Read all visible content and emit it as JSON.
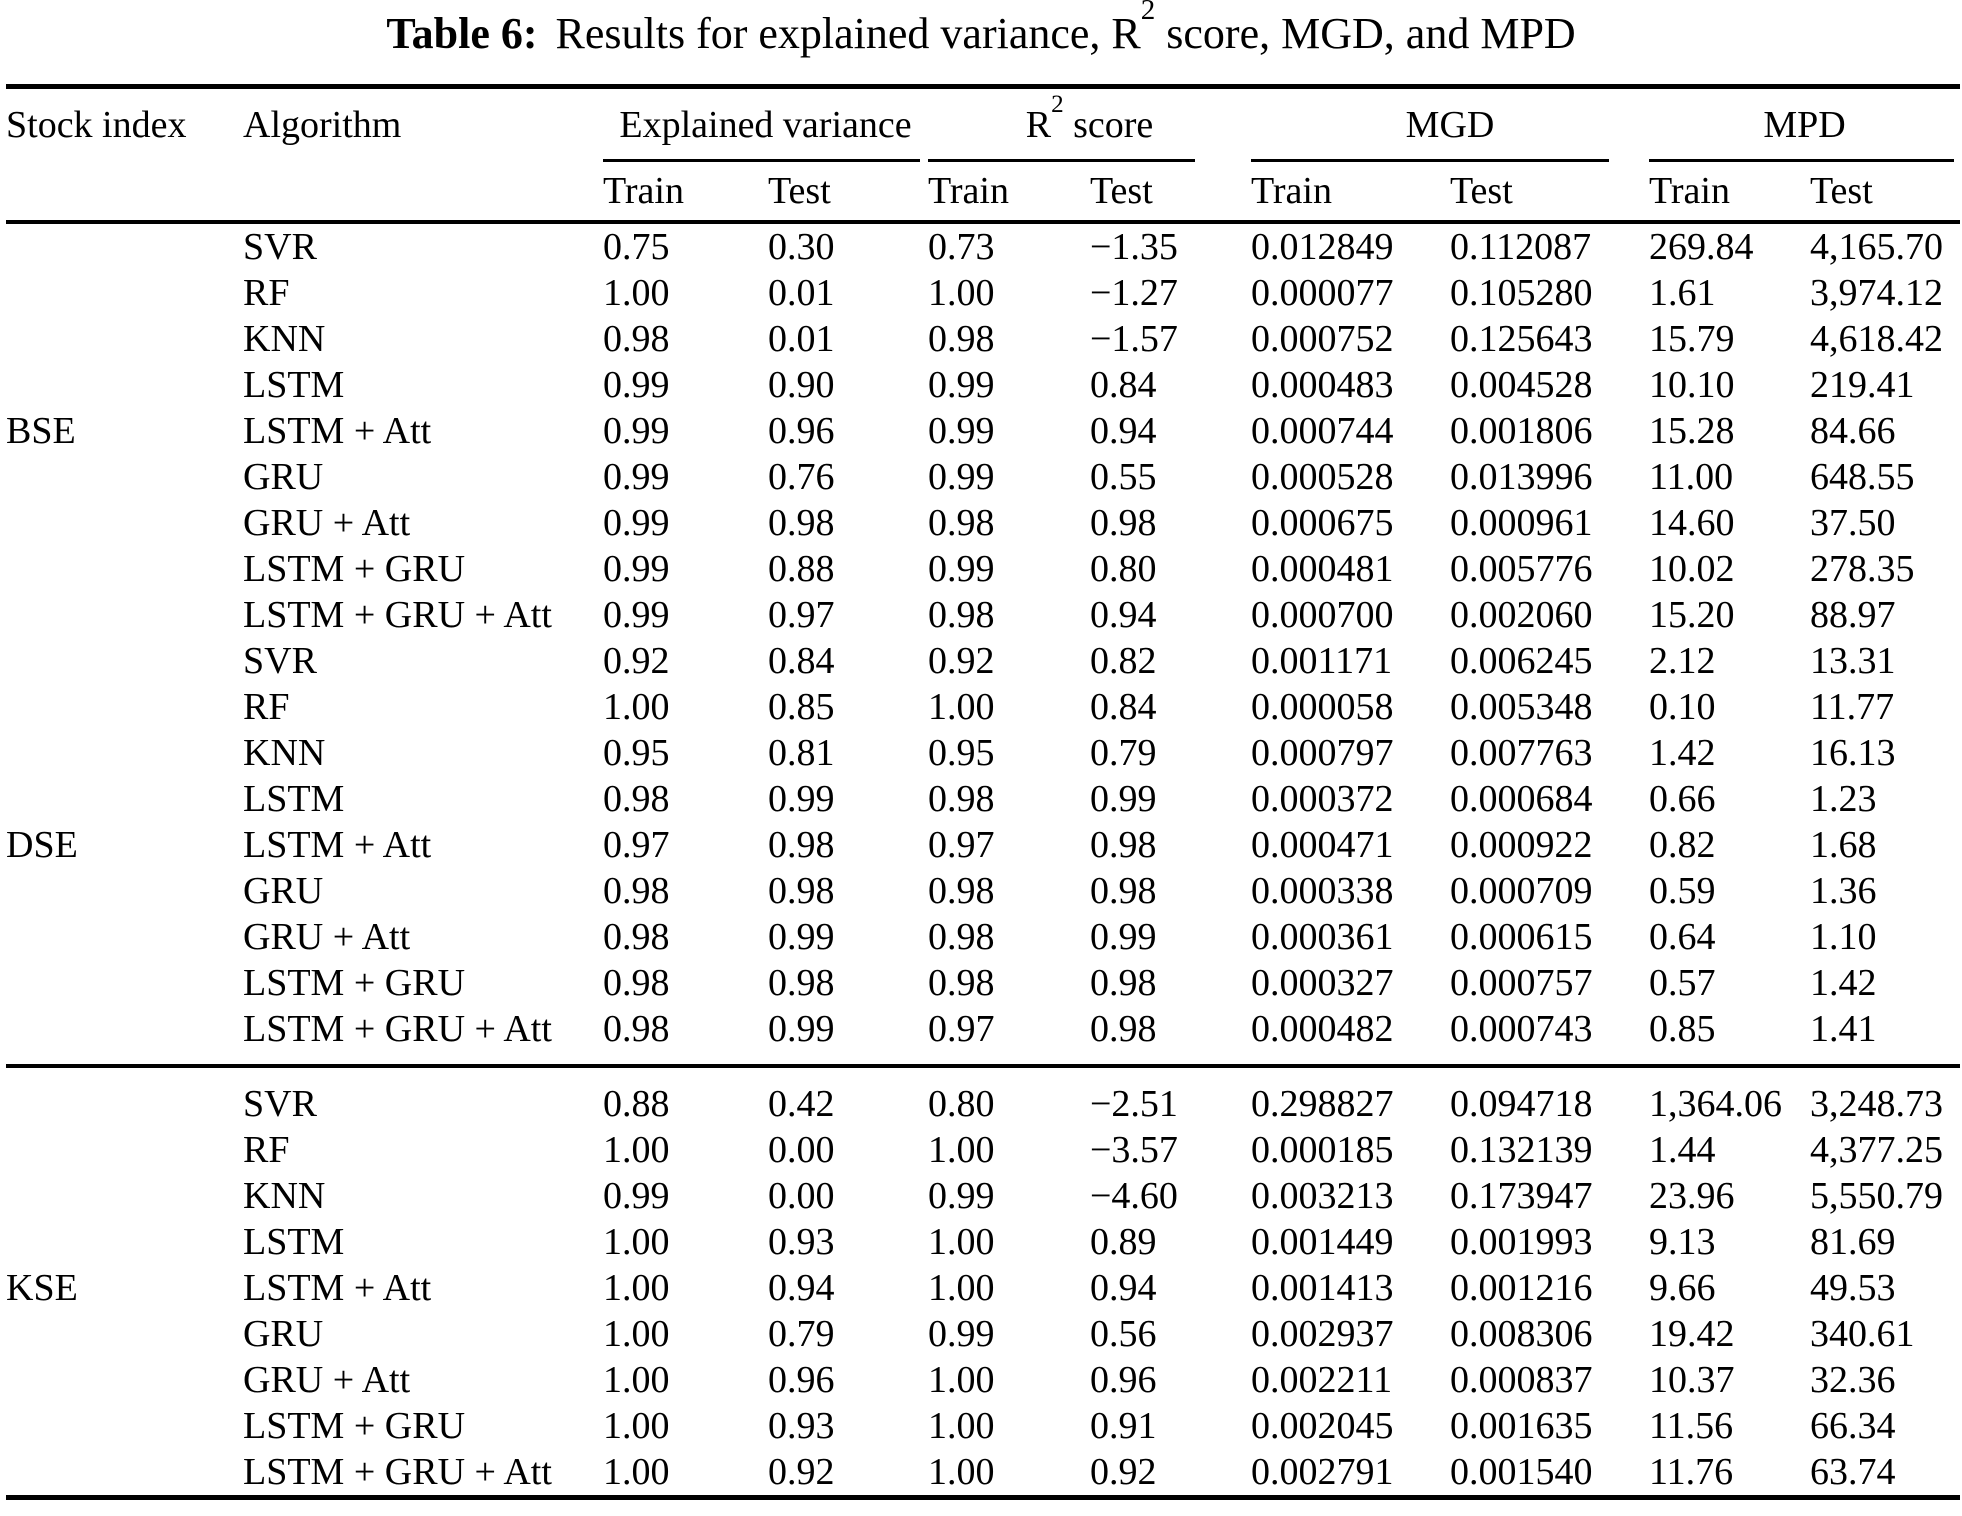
{
  "caption": {
    "label": "Table 6:",
    "text_prefix": "Results for explained variance, R",
    "text_sup": "2",
    "text_suffix": " score, MGD, and MPD"
  },
  "header": {
    "stock_index": "Stock index",
    "algorithm": "Algorithm",
    "groups": [
      {
        "label": "Explained variance"
      },
      {
        "prefix": "R",
        "sup": "2",
        "suffix": " score"
      },
      {
        "label": "MGD"
      },
      {
        "label": "MPD"
      }
    ],
    "sub": [
      "Train",
      "Test",
      "Train",
      "Test",
      "Train",
      "Test",
      "Train",
      "Test"
    ]
  },
  "body": {
    "groups": [
      {
        "index": "BSE",
        "label_row": 4,
        "rule_before": false,
        "rows": [
          {
            "algorithm": "SVR",
            "values": [
              "0.75",
              "0.30",
              "0.73",
              "−1.35",
              "0.012849",
              "0.112087",
              "269.84",
              "4,165.70"
            ]
          },
          {
            "algorithm": "RF",
            "values": [
              "1.00",
              "0.01",
              "1.00",
              "−1.27",
              "0.000077",
              "0.105280",
              "1.61",
              "3,974.12"
            ]
          },
          {
            "algorithm": "KNN",
            "values": [
              "0.98",
              "0.01",
              "0.98",
              "−1.57",
              "0.000752",
              "0.125643",
              "15.79",
              "4,618.42"
            ]
          },
          {
            "algorithm": "LSTM",
            "values": [
              "0.99",
              "0.90",
              "0.99",
              "0.84",
              "0.000483",
              "0.004528",
              "10.10",
              "219.41"
            ]
          },
          {
            "algorithm": "LSTM + Att",
            "values": [
              "0.99",
              "0.96",
              "0.99",
              "0.94",
              "0.000744",
              "0.001806",
              "15.28",
              "84.66"
            ]
          },
          {
            "algorithm": "GRU",
            "values": [
              "0.99",
              "0.76",
              "0.99",
              "0.55",
              "0.000528",
              "0.013996",
              "11.00",
              "648.55"
            ]
          },
          {
            "algorithm": "GRU + Att",
            "values": [
              "0.99",
              "0.98",
              "0.98",
              "0.98",
              "0.000675",
              "0.000961",
              "14.60",
              "37.50"
            ]
          },
          {
            "algorithm": "LSTM + GRU",
            "values": [
              "0.99",
              "0.88",
              "0.99",
              "0.80",
              "0.000481",
              "0.005776",
              "10.02",
              "278.35"
            ]
          },
          {
            "algorithm": "LSTM + GRU + Att",
            "values": [
              "0.99",
              "0.97",
              "0.98",
              "0.94",
              "0.000700",
              "0.002060",
              "15.20",
              "88.97"
            ]
          }
        ]
      },
      {
        "index": "DSE",
        "label_row": 4,
        "rule_before": false,
        "rows": [
          {
            "algorithm": "SVR",
            "values": [
              "0.92",
              "0.84",
              "0.92",
              "0.82",
              "0.001171",
              "0.006245",
              "2.12",
              "13.31"
            ]
          },
          {
            "algorithm": "RF",
            "values": [
              "1.00",
              "0.85",
              "1.00",
              "0.84",
              "0.000058",
              "0.005348",
              "0.10",
              "11.77"
            ]
          },
          {
            "algorithm": "KNN",
            "values": [
              "0.95",
              "0.81",
              "0.95",
              "0.79",
              "0.000797",
              "0.007763",
              "1.42",
              "16.13"
            ]
          },
          {
            "algorithm": "LSTM",
            "values": [
              "0.98",
              "0.99",
              "0.98",
              "0.99",
              "0.000372",
              "0.000684",
              "0.66",
              "1.23"
            ]
          },
          {
            "algorithm": "LSTM + Att",
            "values": [
              "0.97",
              "0.98",
              "0.97",
              "0.98",
              "0.000471",
              "0.000922",
              "0.82",
              "1.68"
            ]
          },
          {
            "algorithm": "GRU",
            "values": [
              "0.98",
              "0.98",
              "0.98",
              "0.98",
              "0.000338",
              "0.000709",
              "0.59",
              "1.36"
            ]
          },
          {
            "algorithm": "GRU + Att",
            "values": [
              "0.98",
              "0.99",
              "0.98",
              "0.99",
              "0.000361",
              "0.000615",
              "0.64",
              "1.10"
            ]
          },
          {
            "algorithm": "LSTM + GRU",
            "values": [
              "0.98",
              "0.98",
              "0.98",
              "0.98",
              "0.000327",
              "0.000757",
              "0.57",
              "1.42"
            ]
          },
          {
            "algorithm": "LSTM + GRU + Att",
            "values": [
              "0.98",
              "0.99",
              "0.97",
              "0.98",
              "0.000482",
              "0.000743",
              "0.85",
              "1.41"
            ]
          }
        ]
      },
      {
        "index": "KSE",
        "label_row": 4,
        "rule_before": true,
        "rows": [
          {
            "algorithm": "SVR",
            "values": [
              "0.88",
              "0.42",
              "0.80",
              "−2.51",
              "0.298827",
              "0.094718",
              "1,364.06",
              "3,248.73"
            ]
          },
          {
            "algorithm": "RF",
            "values": [
              "1.00",
              "0.00",
              "1.00",
              "−3.57",
              "0.000185",
              "0.132139",
              "1.44",
              "4,377.25"
            ]
          },
          {
            "algorithm": "KNN",
            "values": [
              "0.99",
              "0.00",
              "0.99",
              "−4.60",
              "0.003213",
              "0.173947",
              "23.96",
              "5,550.79"
            ]
          },
          {
            "algorithm": "LSTM",
            "values": [
              "1.00",
              "0.93",
              "1.00",
              "0.89",
              "0.001449",
              "0.001993",
              "9.13",
              "81.69"
            ]
          },
          {
            "algorithm": "LSTM + Att",
            "values": [
              "1.00",
              "0.94",
              "1.00",
              "0.94",
              "0.001413",
              "0.001216",
              "9.66",
              "49.53"
            ]
          },
          {
            "algorithm": "GRU",
            "values": [
              "1.00",
              "0.79",
              "0.99",
              "0.56",
              "0.002937",
              "0.008306",
              "19.42",
              "340.61"
            ]
          },
          {
            "algorithm": "GRU + Att",
            "values": [
              "1.00",
              "0.96",
              "1.00",
              "0.96",
              "0.002211",
              "0.000837",
              "10.37",
              "32.36"
            ]
          },
          {
            "algorithm": "LSTM + GRU",
            "values": [
              "1.00",
              "0.93",
              "1.00",
              "0.91",
              "0.002045",
              "0.001635",
              "11.56",
              "66.34"
            ]
          },
          {
            "algorithm": "LSTM + GRU + Att",
            "values": [
              "1.00",
              "0.92",
              "1.00",
              "0.92",
              "0.002791",
              "0.001540",
              "11.76",
              "63.74"
            ]
          }
        ]
      }
    ]
  }
}
